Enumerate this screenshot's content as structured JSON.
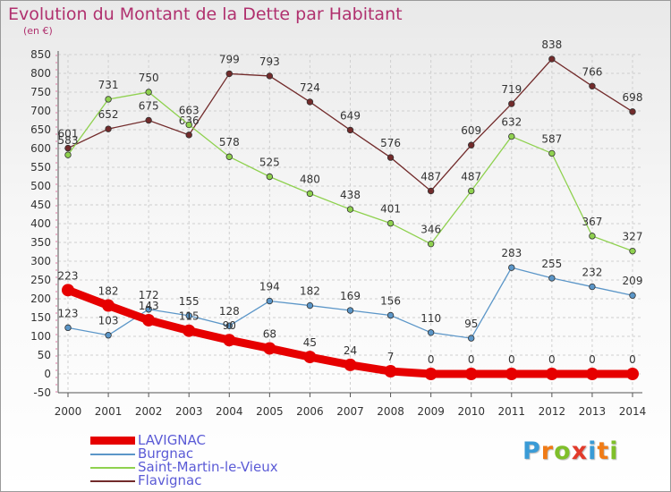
{
  "header": {
    "title": "Evolution du Montant de la Dette par Habitant",
    "unit": "(en €)"
  },
  "brand": {
    "letters": [
      "P",
      "r",
      "o",
      "x",
      "i",
      "t",
      "i"
    ],
    "colors": [
      "#3a9bd6",
      "#f07b16",
      "#7fbf2a",
      "#e23b2b",
      "#3a9bd6",
      "#f07b16",
      "#7fbf2a"
    ]
  },
  "chart_data": {
    "type": "line",
    "title": "Evolution du Montant de la Dette par Habitant",
    "ylabel": "(en €)",
    "xlabel": "",
    "ylim": [
      -50,
      850
    ],
    "yticks": [
      -50,
      0,
      50,
      100,
      150,
      200,
      250,
      300,
      350,
      400,
      450,
      500,
      550,
      600,
      650,
      700,
      750,
      800,
      850
    ],
    "grid": true,
    "legend_position": "bottom-left",
    "x": [
      "2000",
      "2001",
      "2002",
      "2003",
      "2004",
      "2005",
      "2006",
      "2007",
      "2008",
      "2009",
      "2010",
      "2011",
      "2012",
      "2013",
      "2014"
    ],
    "series": [
      {
        "name": "LAVIGNAC",
        "color": "#e60000",
        "emphasis": true,
        "values": [
          223,
          182,
          143,
          115,
          90,
          68,
          45,
          24,
          7,
          0,
          0,
          0,
          0,
          0,
          0
        ]
      },
      {
        "name": "Burgnac",
        "color": "#5b96c8",
        "values": [
          123,
          103,
          172,
          155,
          128,
          194,
          182,
          169,
          156,
          110,
          95,
          283,
          255,
          232,
          209
        ]
      },
      {
        "name": "Saint-Martin-le-Vieux",
        "color": "#8fd14f",
        "values": [
          583,
          731,
          750,
          663,
          578,
          525,
          480,
          438,
          401,
          346,
          487,
          632,
          587,
          367,
          327
        ]
      },
      {
        "name": "Flavignac",
        "color": "#722b2b",
        "values": [
          601,
          652,
          675,
          636,
          799,
          793,
          724,
          649,
          576,
          487,
          609,
          719,
          838,
          766,
          698
        ]
      }
    ]
  }
}
